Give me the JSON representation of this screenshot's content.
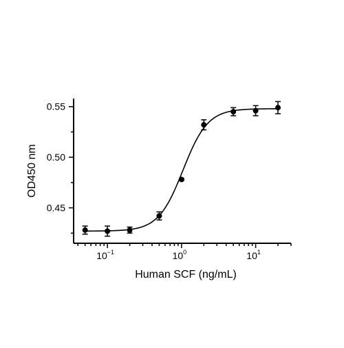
{
  "chart_data": {
    "type": "scatter",
    "title": "",
    "xlabel": "Human SCF (ng/mL)",
    "ylabel": "OD450 nm",
    "x_scale": "log",
    "xlim": [
      0.035,
      30
    ],
    "ylim": [
      0.415,
      0.558
    ],
    "grid": false,
    "legend": "none",
    "x_ticks": [
      {
        "value": 0.1,
        "base": "10",
        "exp": "−1"
      },
      {
        "value": 1,
        "base": "10",
        "exp": "0"
      },
      {
        "value": 10,
        "base": "10",
        "exp": "1"
      }
    ],
    "y_ticks": [
      {
        "value": 0.45,
        "label": "0.45"
      },
      {
        "value": 0.5,
        "label": "0.50"
      },
      {
        "value": 0.55,
        "label": "0.55"
      }
    ],
    "series": [
      {
        "points": [
          {
            "x": 0.05,
            "y": 0.428,
            "err": 0.004
          },
          {
            "x": 0.1,
            "y": 0.427,
            "err": 0.005
          },
          {
            "x": 0.2,
            "y": 0.428,
            "err": 0.003
          },
          {
            "x": 0.5,
            "y": 0.442,
            "err": 0.004
          },
          {
            "x": 1.0,
            "y": 0.478,
            "err": 0.001
          },
          {
            "x": 2.0,
            "y": 0.532,
            "err": 0.005
          },
          {
            "x": 5.0,
            "y": 0.545,
            "err": 0.004
          },
          {
            "x": 10.0,
            "y": 0.546,
            "err": 0.005
          },
          {
            "x": 20.0,
            "y": 0.549,
            "err": 0.006
          }
        ],
        "fit": {
          "model": "4PL",
          "bottom": 0.427,
          "top": 0.548,
          "ec50": 1.05,
          "hill": 2.6
        },
        "color": "#000000"
      }
    ]
  }
}
